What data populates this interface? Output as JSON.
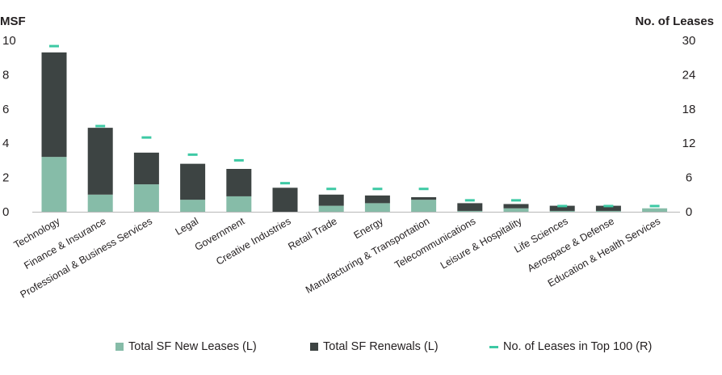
{
  "chart_data": {
    "type": "bar",
    "stacked": true,
    "ylabel_left": "MSF",
    "ylabel_right": "No. of Leases",
    "ylim_left": [
      0,
      10
    ],
    "yticks_left": [
      "0",
      "2",
      "4",
      "6",
      "8",
      "10"
    ],
    "ylim_right": [
      0,
      30
    ],
    "yticks_right": [
      "0",
      "6",
      "12",
      "18",
      "24",
      "30"
    ],
    "categories": [
      "Technology",
      "Finance & Insurance",
      "Professional & Business Services",
      "Legal",
      "Government",
      "Creative Industries",
      "Retail Trade",
      "Energy",
      "Manufacturing & Transportation",
      "Telecommunications",
      "Leisure & Hospitality",
      "Life Sciences",
      "Aerospace & Defense",
      "Education & Health Services"
    ],
    "series": [
      {
        "name": "Total SF New Leases (L)",
        "axis": "left",
        "color": "#86bca8",
        "values": [
          3.2,
          1.0,
          1.6,
          0.7,
          0.9,
          0.0,
          0.35,
          0.5,
          0.7,
          0.05,
          0.2,
          0.05,
          0.05,
          0.2
        ]
      },
      {
        "name": "Total SF Renewals (L)",
        "axis": "left",
        "color": "#3d4443",
        "values": [
          6.1,
          3.9,
          1.85,
          2.1,
          1.6,
          1.4,
          0.65,
          0.45,
          0.15,
          0.45,
          0.25,
          0.3,
          0.3,
          0.0
        ]
      },
      {
        "name": "No. of Leases in Top 100 (R)",
        "axis": "right",
        "color": "#3dc9a4",
        "values": [
          29,
          15,
          13,
          10,
          9,
          5,
          4,
          4,
          4,
          2,
          2,
          1,
          1,
          1
        ]
      }
    ]
  }
}
